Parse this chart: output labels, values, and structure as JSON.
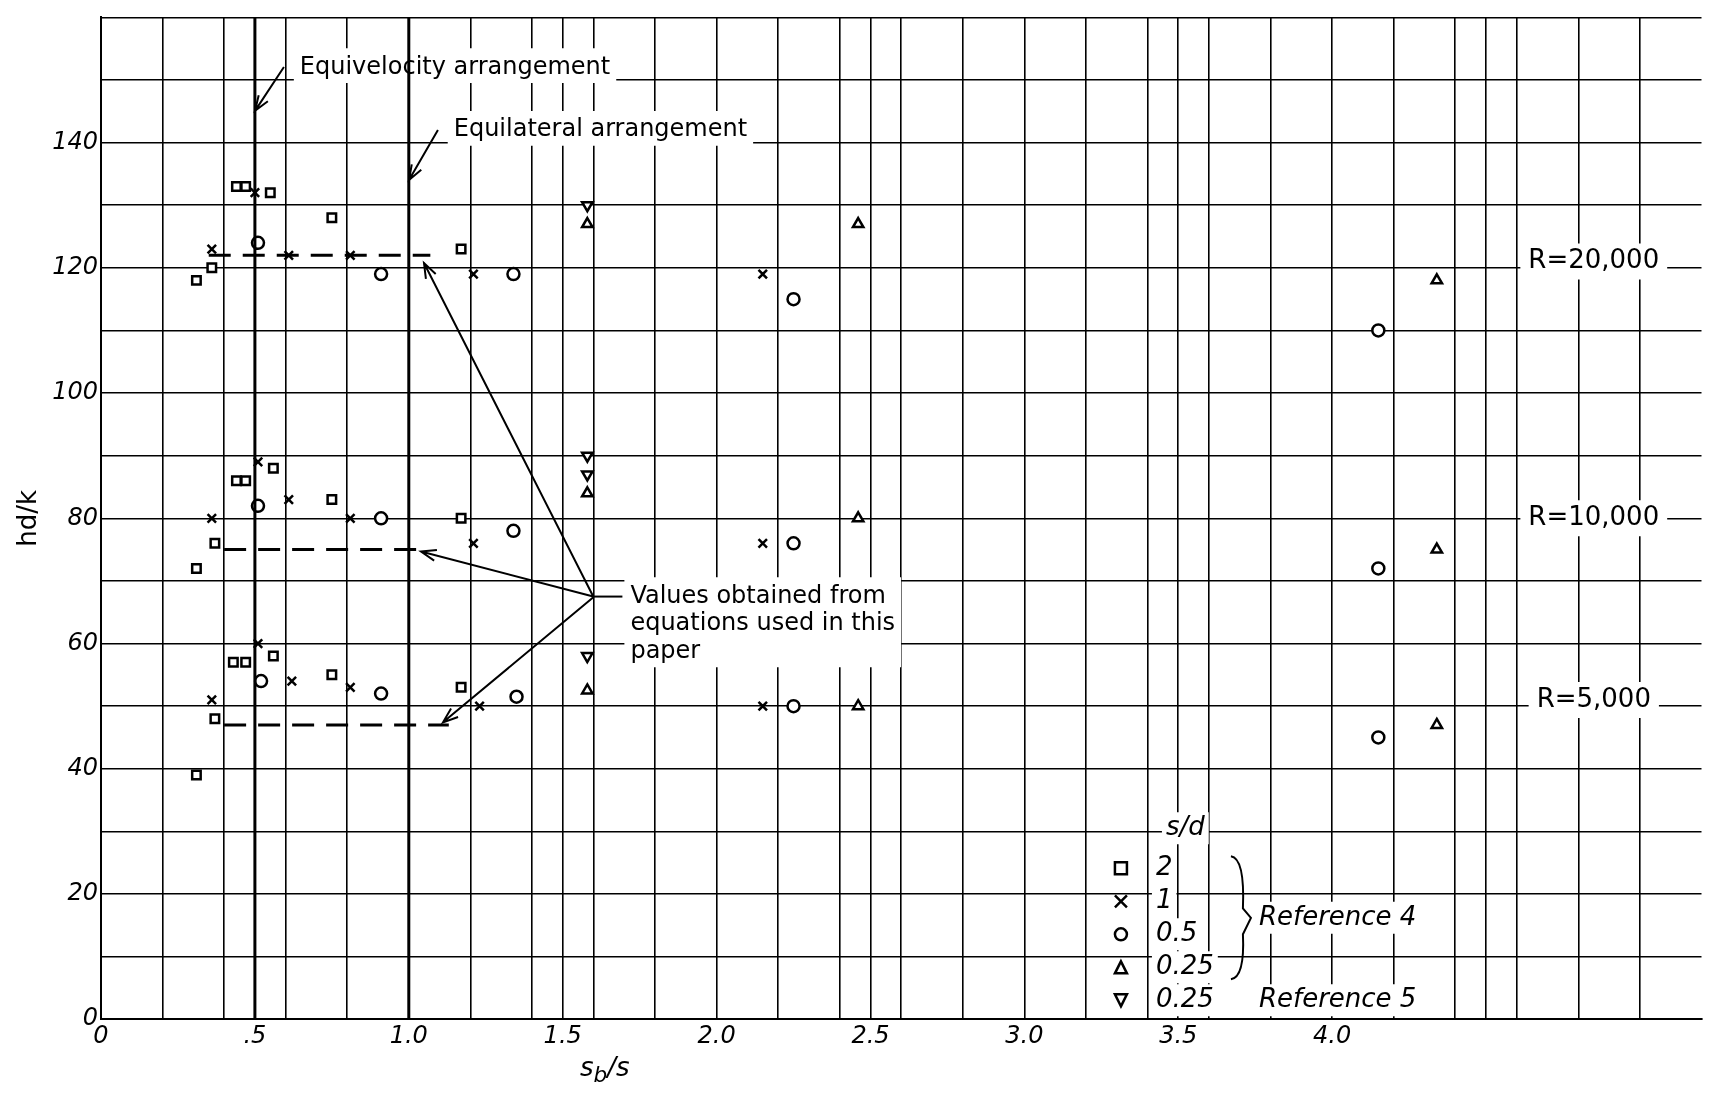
{
  "chart_data": {
    "type": "scatter",
    "xlabel": "s$_{b}$/s",
    "ylabel": "hd/k",
    "legend_title": "s/d",
    "legend": "bottom right",
    "grid": true,
    "xlim": [
      0,
      5.2
    ],
    "ylim": [
      0,
      160
    ],
    "xticks": [
      {
        "value": 0,
        "label": "0"
      },
      {
        "value": 0.2,
        "label": null
      },
      {
        "value": 0.4,
        "label": null
      },
      {
        "value": 0.5,
        "label": ".5"
      },
      {
        "value": 0.6,
        "label": null
      },
      {
        "value": 0.8,
        "label": null
      },
      {
        "value": 1.0,
        "label": "1.0"
      },
      {
        "value": 1.2,
        "label": null
      },
      {
        "value": 1.4,
        "label": null
      },
      {
        "value": 1.5,
        "label": "1.5"
      },
      {
        "value": 1.6,
        "label": null
      },
      {
        "value": 1.8,
        "label": null
      },
      {
        "value": 2.0,
        "label": "2.0"
      },
      {
        "value": 2.2,
        "label": null
      },
      {
        "value": 2.4,
        "label": null
      },
      {
        "value": 2.5,
        "label": "2.5"
      },
      {
        "value": 2.6,
        "label": null
      },
      {
        "value": 2.8,
        "label": null
      },
      {
        "value": 3.0,
        "label": "3.0"
      },
      {
        "value": 3.2,
        "label": null
      },
      {
        "value": 3.4,
        "label": null
      },
      {
        "value": 3.5,
        "label": "3.5"
      },
      {
        "value": 3.6,
        "label": null
      },
      {
        "value": 3.8,
        "label": null
      },
      {
        "value": 4.0,
        "label": "4.0"
      },
      {
        "value": 4.2,
        "label": null
      },
      {
        "value": 4.4,
        "label": null
      },
      {
        "value": 4.5,
        "label": null
      },
      {
        "value": 4.6,
        "label": null
      },
      {
        "value": 4.8,
        "label": null
      },
      {
        "value": 5.0,
        "label": null
      }
    ],
    "yticks": [
      0,
      {
        "value": 10,
        "label": null
      },
      20,
      {
        "value": 30,
        "label": null
      },
      40,
      {
        "value": 50,
        "label": null
      },
      60,
      {
        "value": 70,
        "label": null
      },
      80,
      {
        "value": 90,
        "label": null
      },
      100,
      {
        "value": 110,
        "label": null
      },
      120,
      {
        "value": 130,
        "label": null
      },
      140,
      {
        "value": 150,
        "label": null
      },
      {
        "value": 160,
        "label": null
      }
    ],
    "series": [
      {
        "name": "2",
        "color": "#000000",
        "marker": "square",
        "x": [
          0.31,
          0.36,
          0.44,
          0.47,
          0.55,
          0.75,
          1.17,
          0.31,
          0.37,
          0.44,
          0.47,
          0.56,
          0.75,
          1.17,
          0.31,
          0.37,
          0.43,
          0.47,
          0.56,
          0.75,
          1.17
        ],
        "values": [
          118,
          120,
          133,
          133,
          132,
          128,
          123,
          72,
          76,
          86,
          86,
          88,
          83,
          80,
          39,
          48,
          57,
          57,
          58,
          55,
          53
        ]
      },
      {
        "name": "1",
        "color": "#000000",
        "marker": "cross",
        "x": [
          0.36,
          0.5,
          0.61,
          0.81,
          1.21,
          2.15,
          0.36,
          0.51,
          0.61,
          0.81,
          1.21,
          2.15,
          0.36,
          0.51,
          0.62,
          0.81,
          1.23,
          2.15
        ],
        "values": [
          123,
          132,
          122,
          122,
          119,
          119,
          80,
          89,
          83,
          80,
          76,
          76,
          51,
          60,
          54,
          53,
          50,
          50
        ]
      },
      {
        "name": "0.5",
        "color": "#000000",
        "marker": "circle",
        "x": [
          0.51,
          0.91,
          1.34,
          2.25,
          4.15,
          0.51,
          0.91,
          1.34,
          2.25,
          4.15,
          0.52,
          0.91,
          1.35,
          2.25,
          4.15
        ],
        "values": [
          124,
          119,
          119,
          115,
          110,
          82,
          80,
          78,
          76,
          72,
          54,
          52,
          51.5,
          50,
          45
        ]
      },
      {
        "name": "0.25",
        "color": "#000000",
        "marker": "triangle",
        "x": [
          1.58,
          2.46,
          4.34,
          1.58,
          2.46,
          4.34,
          1.58,
          2.46,
          4.34
        ],
        "values": [
          127,
          127,
          118,
          84,
          80,
          75,
          52.5,
          50,
          47
        ]
      },
      {
        "name": "0.25",
        "color": "#000000",
        "marker": "triangle-down",
        "x": [
          1.58,
          1.58,
          1.58,
          1.58
        ],
        "values": [
          130,
          90,
          87,
          58
        ]
      },
      {
        "type": "line",
        "color": "#000000",
        "marker": "none",
        "line_style": "dashed",
        "x": [
          0.35,
          1.07
        ],
        "values": [
          122,
          122
        ]
      },
      {
        "type": "line",
        "color": "#000000",
        "marker": "none",
        "line_style": "dashed",
        "x": [
          0.4,
          1.06
        ],
        "values": [
          75,
          75
        ]
      },
      {
        "type": "line",
        "color": "#000000",
        "marker": "none",
        "line_style": "dashed",
        "x": [
          0.4,
          1.13
        ],
        "values": [
          47,
          47
        ]
      }
    ],
    "ref_lines": [
      {
        "axis": "x",
        "value": 0.5,
        "label": "Equivelocity arrangement"
      },
      {
        "axis": "x",
        "value": 1.0,
        "label": "Equilateral arrangement"
      }
    ],
    "annotations": [
      "Values obtained from equations used in this paper",
      "Reference 4",
      "Reference 5",
      "R=20,000",
      "R=10,000",
      "R=5,000"
    ]
  }
}
